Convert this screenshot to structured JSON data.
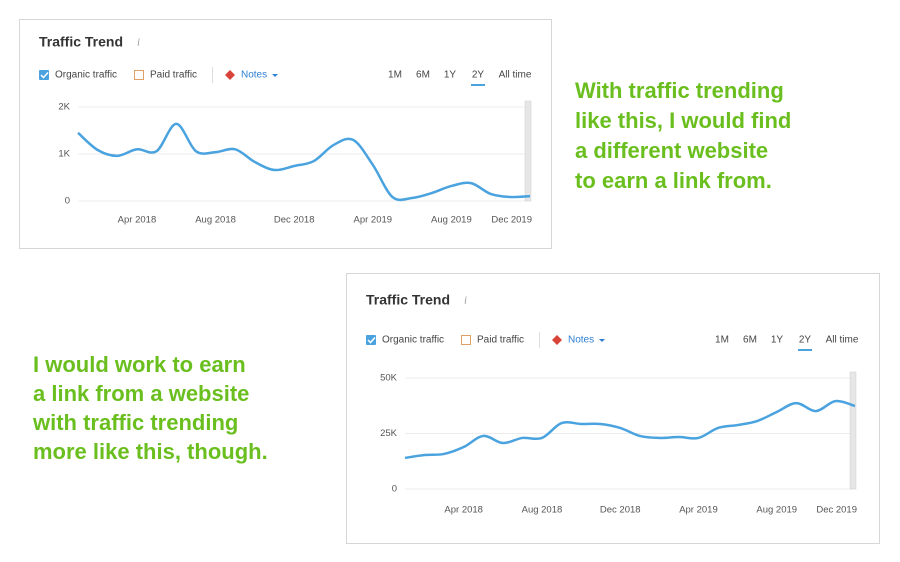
{
  "chart_data": [
    {
      "type": "line",
      "title": "Traffic Trend",
      "x": [
        "2018-01",
        "2018-02",
        "2018-03",
        "2018-04",
        "2018-05",
        "2018-06",
        "2018-07",
        "2018-08",
        "2018-09",
        "2018-10",
        "2018-11",
        "2018-12",
        "2019-01",
        "2019-02",
        "2019-03",
        "2019-04",
        "2019-05",
        "2019-06",
        "2019-07",
        "2019-08",
        "2019-09",
        "2019-10",
        "2019-11",
        "2019-12"
      ],
      "series": [
        {
          "name": "Organic traffic",
          "color": "#4aa3df",
          "values": [
            1450,
            1085,
            960,
            1100,
            1060,
            1640,
            1060,
            1040,
            1100,
            830,
            660,
            745,
            850,
            1190,
            1300,
            770,
            85,
            65,
            170,
            320,
            380,
            150,
            85,
            105
          ]
        }
      ],
      "inactive_series": [
        "Paid traffic"
      ],
      "notes_label": "Notes",
      "range_options": [
        "1M",
        "6M",
        "1Y",
        "2Y",
        "All time"
      ],
      "selected_range_index": 3,
      "ylim": [
        0,
        2000
      ],
      "yticks": [
        0,
        {
          "value": 1000,
          "label": "1K"
        },
        {
          "value": 2000,
          "label": "2K"
        }
      ],
      "xticks": [
        {
          "value": "2018-04",
          "label": "Apr 2018"
        },
        {
          "value": "2018-08",
          "label": "Aug 2018"
        },
        {
          "value": "2018-12",
          "label": "Dec 2018"
        },
        {
          "value": "2019-04",
          "label": "Apr 2019"
        },
        {
          "value": "2019-08",
          "label": "Aug 2019"
        },
        {
          "value": "2019-12",
          "label": "Dec 2019"
        }
      ],
      "grid": true,
      "annotation_lines": [
        "With traffic trending",
        "like this, I would find",
        "a different website",
        "to earn a link from."
      ]
    },
    {
      "type": "line",
      "title": "Traffic Trend",
      "x": [
        "2018-01",
        "2018-02",
        "2018-03",
        "2018-04",
        "2018-05",
        "2018-06",
        "2018-07",
        "2018-08",
        "2018-09",
        "2018-10",
        "2018-11",
        "2018-12",
        "2019-01",
        "2019-02",
        "2019-03",
        "2019-04",
        "2019-05",
        "2019-06",
        "2019-07",
        "2019-08",
        "2019-09",
        "2019-10",
        "2019-11",
        "2019-12"
      ],
      "series": [
        {
          "name": "Organic traffic",
          "color": "#4aa3df",
          "values": [
            14000,
            15300,
            15800,
            18900,
            23900,
            20700,
            23000,
            23000,
            29700,
            29300,
            29300,
            27500,
            23900,
            23000,
            23400,
            23000,
            27500,
            28800,
            30600,
            34700,
            38700,
            35100,
            39600,
            37400
          ]
        }
      ],
      "inactive_series": [
        "Paid traffic"
      ],
      "notes_label": "Notes",
      "range_options": [
        "1M",
        "6M",
        "1Y",
        "2Y",
        "All time"
      ],
      "selected_range_index": 3,
      "ylim": [
        0,
        50000
      ],
      "yticks": [
        0,
        {
          "value": 25000,
          "label": "25K"
        },
        {
          "value": 50000,
          "label": "50K"
        }
      ],
      "xticks": [
        {
          "value": "2018-04",
          "label": "Apr 2018"
        },
        {
          "value": "2018-08",
          "label": "Aug 2018"
        },
        {
          "value": "2018-12",
          "label": "Dec 2018"
        },
        {
          "value": "2019-04",
          "label": "Apr 2019"
        },
        {
          "value": "2019-08",
          "label": "Aug 2019"
        },
        {
          "value": "2019-12",
          "label": "Dec 2019"
        }
      ],
      "grid": true,
      "annotation_lines": [
        "I would work to earn",
        "a link from a website",
        "with traffic trending",
        "more like this, though."
      ]
    }
  ]
}
